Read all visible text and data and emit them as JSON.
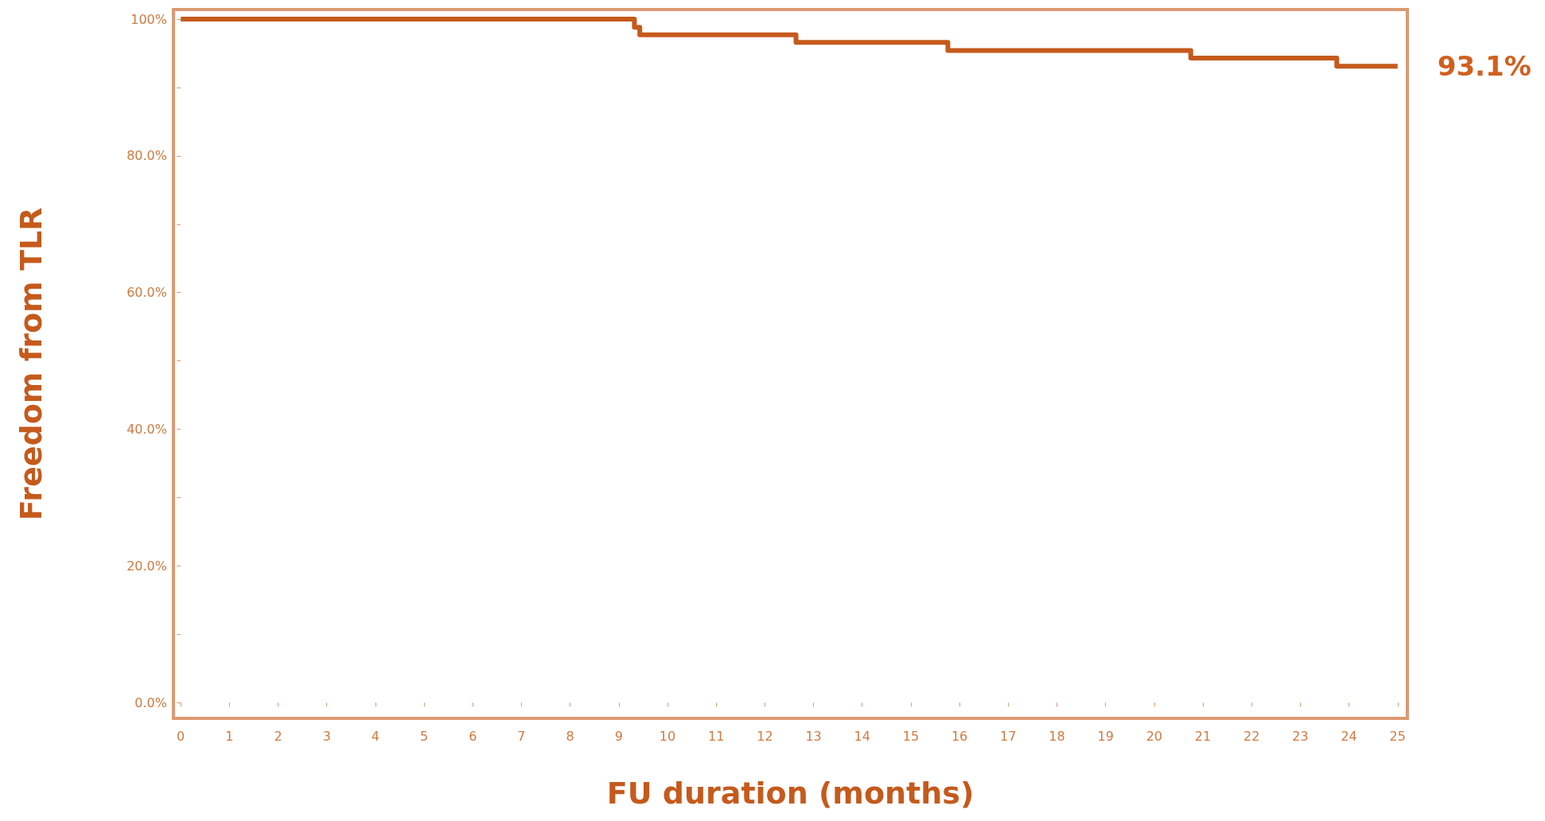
{
  "chart_data": {
    "type": "step",
    "xlabel": "FU duration (months)",
    "ylabel": "Freedom from TLR",
    "x": [
      0,
      9.32,
      9.43,
      12.64,
      15.76,
      20.75,
      23.75,
      25
    ],
    "series": [
      {
        "color": "#c55a1c",
        "values": [
          100,
          98.8,
          97.7,
          96.6,
          95.4,
          94.3,
          93.1,
          93.1
        ]
      }
    ],
    "xlim": [
      -0.15,
      25.2
    ],
    "xticks": [
      0,
      1,
      2,
      3,
      4,
      5,
      6,
      7,
      8,
      9,
      10,
      11,
      12,
      13,
      14,
      15,
      16,
      17,
      18,
      19,
      20,
      21,
      22,
      23,
      24,
      25
    ],
    "ylim": [
      -2.3,
      101.4
    ],
    "yticks": [
      {
        "value": 0,
        "label": "0.0%"
      },
      {
        "value": 10,
        "label": null
      },
      {
        "value": 20,
        "label": "20.0%"
      },
      {
        "value": 30,
        "label": null
      },
      {
        "value": 40,
        "label": "40.0%"
      },
      {
        "value": 50,
        "label": null
      },
      {
        "value": 60,
        "label": "60.0%"
      },
      {
        "value": 70,
        "label": null
      },
      {
        "value": 80,
        "label": "80.0%"
      },
      {
        "value": 90,
        "label": null
      },
      {
        "value": 100,
        "label": "100%"
      }
    ],
    "annotations": [
      {
        "text": "93.1%",
        "x": 25,
        "y": 93.1
      }
    ],
    "marker": "none",
    "line_style": "solid"
  }
}
